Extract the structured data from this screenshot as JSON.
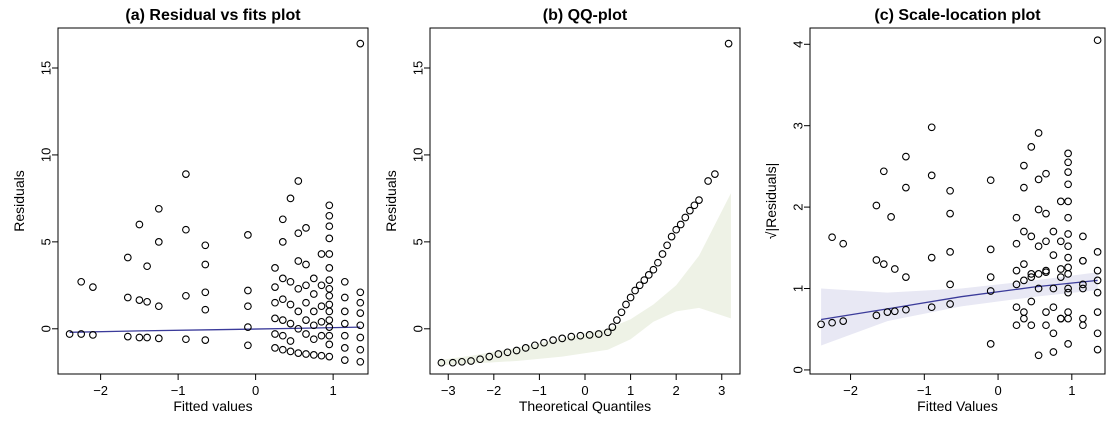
{
  "chart_data": [
    {
      "type": "scatter",
      "title": "(a) Residual vs fits plot",
      "xlabel": "Fitted values",
      "ylabel": "Residuals",
      "xlim": [
        -2.55,
        1.45
      ],
      "ylim": [
        -2.6,
        17.3
      ],
      "xticks": [
        -2,
        -1,
        0,
        1
      ],
      "yticks": [
        0,
        5,
        10,
        15
      ],
      "grid": false,
      "colors": {
        "points": "#000000",
        "smooth": "#3b3b9a"
      },
      "smooth": {
        "x": [
          -2.4,
          -1.5,
          -0.5,
          0.5,
          1.35
        ],
        "y": [
          -0.2,
          -0.12,
          -0.05,
          0.02,
          0.1
        ]
      },
      "points": [
        [
          -2.4,
          -0.3
        ],
        [
          -2.25,
          -0.3
        ],
        [
          -2.25,
          2.7
        ],
        [
          -2.1,
          -0.35
        ],
        [
          -2.1,
          2.4
        ],
        [
          -1.65,
          4.1
        ],
        [
          -1.65,
          1.8
        ],
        [
          -1.65,
          -0.45
        ],
        [
          -1.5,
          6.0
        ],
        [
          -1.5,
          1.65
        ],
        [
          -1.5,
          -0.5
        ],
        [
          -1.4,
          3.6
        ],
        [
          -1.4,
          1.55
        ],
        [
          -1.4,
          -0.5
        ],
        [
          -1.25,
          6.9
        ],
        [
          -1.25,
          5.0
        ],
        [
          -1.25,
          1.3
        ],
        [
          -1.25,
          -0.55
        ],
        [
          -0.9,
          8.9
        ],
        [
          -0.9,
          5.7
        ],
        [
          -0.9,
          1.9
        ],
        [
          -0.9,
          -0.6
        ],
        [
          -0.65,
          4.8
        ],
        [
          -0.65,
          3.7
        ],
        [
          -0.65,
          2.1
        ],
        [
          -0.65,
          1.1
        ],
        [
          -0.65,
          -0.65
        ],
        [
          -0.1,
          5.4
        ],
        [
          -0.1,
          2.2
        ],
        [
          -0.1,
          1.3
        ],
        [
          -0.1,
          0.1
        ],
        [
          -0.1,
          -0.95
        ],
        [
          0.25,
          3.5
        ],
        [
          0.25,
          2.4
        ],
        [
          0.25,
          1.5
        ],
        [
          0.25,
          0.6
        ],
        [
          0.25,
          -0.3
        ],
        [
          0.25,
          -1.1
        ],
        [
          0.35,
          6.3
        ],
        [
          0.35,
          5.0
        ],
        [
          0.35,
          2.9
        ],
        [
          0.35,
          1.7
        ],
        [
          0.35,
          0.5
        ],
        [
          0.35,
          -0.4
        ],
        [
          0.35,
          -1.2
        ],
        [
          0.45,
          7.5
        ],
        [
          0.45,
          2.7
        ],
        [
          0.45,
          1.4
        ],
        [
          0.45,
          0.3
        ],
        [
          0.45,
          -0.7
        ],
        [
          0.45,
          -1.3
        ],
        [
          0.55,
          8.5
        ],
        [
          0.55,
          5.5
        ],
        [
          0.55,
          3.9
        ],
        [
          0.55,
          2.3
        ],
        [
          0.55,
          1.0
        ],
        [
          0.55,
          0.0
        ],
        [
          0.55,
          -1.4
        ],
        [
          0.65,
          5.8
        ],
        [
          0.65,
          3.7
        ],
        [
          0.65,
          2.5
        ],
        [
          0.65,
          1.5
        ],
        [
          0.65,
          0.5
        ],
        [
          0.65,
          -0.3
        ],
        [
          0.65,
          -1.45
        ],
        [
          0.75,
          2.9
        ],
        [
          0.75,
          2.0
        ],
        [
          0.75,
          1.0
        ],
        [
          0.75,
          0.2
        ],
        [
          0.75,
          -0.6
        ],
        [
          0.75,
          -1.5
        ],
        [
          0.85,
          4.3
        ],
        [
          0.85,
          2.5
        ],
        [
          0.85,
          1.3
        ],
        [
          0.85,
          0.4
        ],
        [
          0.85,
          -0.4
        ],
        [
          0.85,
          -1.55
        ],
        [
          0.95,
          7.1
        ],
        [
          0.95,
          6.5
        ],
        [
          0.95,
          5.9
        ],
        [
          0.95,
          5.2
        ],
        [
          0.95,
          4.3
        ],
        [
          0.95,
          3.5
        ],
        [
          0.95,
          2.8
        ],
        [
          0.95,
          2.3
        ],
        [
          0.95,
          1.9
        ],
        [
          0.95,
          1.4
        ],
        [
          0.95,
          1.0
        ],
        [
          0.95,
          0.5
        ],
        [
          0.95,
          0.1
        ],
        [
          0.95,
          -0.4
        ],
        [
          0.95,
          -0.9
        ],
        [
          0.95,
          -1.6
        ],
        [
          1.15,
          2.7
        ],
        [
          1.15,
          1.8
        ],
        [
          1.15,
          1.0
        ],
        [
          1.15,
          0.3
        ],
        [
          1.15,
          -0.4
        ],
        [
          1.15,
          -1.1
        ],
        [
          1.15,
          -1.8
        ],
        [
          1.35,
          16.4
        ],
        [
          1.35,
          2.1
        ],
        [
          1.35,
          1.5
        ],
        [
          1.35,
          0.9
        ],
        [
          1.35,
          0.2
        ],
        [
          1.35,
          -0.5
        ],
        [
          1.35,
          -1.2
        ],
        [
          1.35,
          -1.9
        ]
      ]
    },
    {
      "type": "scatter",
      "title": "(b) QQ-plot",
      "xlabel": "Theoretical Quantiles",
      "ylabel": "Residuals",
      "xlim": [
        -3.4,
        3.4
      ],
      "ylim": [
        -2.6,
        17.3
      ],
      "xticks": [
        -3,
        -2,
        -1,
        0,
        1,
        2,
        3
      ],
      "yticks": [
        0,
        5,
        10,
        15
      ],
      "grid": false,
      "colors": {
        "points": "#000000",
        "band": "#eef2e6"
      },
      "band": {
        "x": [
          -3.2,
          -2.5,
          -1.5,
          -0.5,
          0.5,
          1.0,
          1.5,
          2.0,
          2.5,
          3.2
        ],
        "upper": [
          -1.8,
          -1.55,
          -1.1,
          -0.55,
          0.0,
          0.55,
          1.4,
          2.5,
          4.2,
          7.8
        ],
        "lower": [
          -2.1,
          -2.0,
          -1.85,
          -1.6,
          -1.2,
          -0.6,
          0.4,
          1.0,
          1.2,
          0.6
        ]
      },
      "points_sorted_x": [
        -3.2,
        3.2
      ],
      "observed": [
        [
          -3.15,
          -1.95
        ],
        [
          -2.9,
          -1.95
        ],
        [
          -2.7,
          -1.9
        ],
        [
          -2.5,
          -1.85
        ],
        [
          -2.3,
          -1.75
        ],
        [
          -2.1,
          -1.6
        ],
        [
          -1.9,
          -1.45
        ],
        [
          -1.7,
          -1.35
        ],
        [
          -1.5,
          -1.25
        ],
        [
          -1.3,
          -1.1
        ],
        [
          -1.1,
          -0.95
        ],
        [
          -0.9,
          -0.8
        ],
        [
          -0.7,
          -0.65
        ],
        [
          -0.5,
          -0.55
        ],
        [
          -0.3,
          -0.45
        ],
        [
          -0.1,
          -0.4
        ],
        [
          0.1,
          -0.35
        ],
        [
          0.3,
          -0.3
        ],
        [
          0.5,
          -0.2
        ],
        [
          0.6,
          0.1
        ],
        [
          0.7,
          0.5
        ],
        [
          0.8,
          0.95
        ],
        [
          0.9,
          1.4
        ],
        [
          1.0,
          1.8
        ],
        [
          1.1,
          2.2
        ],
        [
          1.2,
          2.5
        ],
        [
          1.3,
          2.8
        ],
        [
          1.4,
          3.1
        ],
        [
          1.5,
          3.4
        ],
        [
          1.6,
          3.8
        ],
        [
          1.7,
          4.3
        ],
        [
          1.8,
          4.8
        ],
        [
          1.9,
          5.3
        ],
        [
          2.0,
          5.7
        ],
        [
          2.1,
          6.0
        ],
        [
          2.2,
          6.4
        ],
        [
          2.3,
          6.8
        ],
        [
          2.4,
          7.1
        ],
        [
          2.5,
          7.4
        ],
        [
          2.7,
          8.5
        ],
        [
          2.85,
          8.9
        ],
        [
          3.15,
          16.4
        ]
      ]
    },
    {
      "type": "scatter",
      "title": "(c) Scale-location plot",
      "xlabel": "Fitted Values",
      "ylabel": "√|Residuals|",
      "xlim": [
        -2.55,
        1.45
      ],
      "ylim": [
        -0.05,
        4.2
      ],
      "xticks": [
        -2,
        -1,
        0,
        1
      ],
      "yticks": [
        0,
        1,
        2,
        3,
        4
      ],
      "grid": false,
      "colors": {
        "points": "#000000",
        "smooth": "#3b3b9a",
        "band": "#e8e8f4"
      },
      "smooth": {
        "x": [
          -2.4,
          -1.5,
          -0.5,
          0.5,
          1.35
        ],
        "y": [
          0.62,
          0.75,
          0.9,
          1.02,
          1.1
        ]
      },
      "band": {
        "x": [
          -2.4,
          -1.5,
          -0.5,
          0.5,
          1.35
        ],
        "upper": [
          1.0,
          0.95,
          1.0,
          1.1,
          1.2
        ],
        "lower": [
          0.3,
          0.6,
          0.78,
          0.9,
          0.98
        ]
      },
      "points": [
        [
          -2.4,
          0.56
        ],
        [
          -2.25,
          0.58
        ],
        [
          -2.25,
          1.63
        ],
        [
          -2.1,
          0.6
        ],
        [
          -2.1,
          1.55
        ],
        [
          -1.65,
          2.02
        ],
        [
          -1.65,
          1.35
        ],
        [
          -1.65,
          0.67
        ],
        [
          -1.55,
          2.44
        ],
        [
          -1.55,
          1.3
        ],
        [
          -1.5,
          0.71
        ],
        [
          -1.45,
          1.88
        ],
        [
          -1.4,
          1.24
        ],
        [
          -1.4,
          0.72
        ],
        [
          -1.25,
          2.62
        ],
        [
          -1.25,
          2.24
        ],
        [
          -1.25,
          1.14
        ],
        [
          -1.25,
          0.74
        ],
        [
          -0.9,
          2.98
        ],
        [
          -0.9,
          2.39
        ],
        [
          -0.9,
          1.38
        ],
        [
          -0.9,
          0.77
        ],
        [
          -0.65,
          2.2
        ],
        [
          -0.65,
          1.92
        ],
        [
          -0.65,
          1.45
        ],
        [
          -0.65,
          1.05
        ],
        [
          -0.65,
          0.81
        ],
        [
          -0.1,
          2.33
        ],
        [
          -0.1,
          1.48
        ],
        [
          -0.1,
          1.14
        ],
        [
          -0.1,
          0.32
        ],
        [
          -0.1,
          0.97
        ],
        [
          0.25,
          1.87
        ],
        [
          0.25,
          1.55
        ],
        [
          0.25,
          1.22
        ],
        [
          0.25,
          0.77
        ],
        [
          0.25,
          0.55
        ],
        [
          0.25,
          1.05
        ],
        [
          0.35,
          2.51
        ],
        [
          0.35,
          2.24
        ],
        [
          0.35,
          1.7
        ],
        [
          0.35,
          1.3
        ],
        [
          0.35,
          0.71
        ],
        [
          0.35,
          0.63
        ],
        [
          0.35,
          1.1
        ],
        [
          0.45,
          2.74
        ],
        [
          0.45,
          1.64
        ],
        [
          0.45,
          1.18
        ],
        [
          0.45,
          0.55
        ],
        [
          0.45,
          0.84
        ],
        [
          0.45,
          1.14
        ],
        [
          0.55,
          2.91
        ],
        [
          0.55,
          2.34
        ],
        [
          0.55,
          1.97
        ],
        [
          0.55,
          1.52
        ],
        [
          0.55,
          1.0
        ],
        [
          0.55,
          0.18
        ],
        [
          0.55,
          1.18
        ],
        [
          0.65,
          2.41
        ],
        [
          0.65,
          1.92
        ],
        [
          0.65,
          1.58
        ],
        [
          0.65,
          1.22
        ],
        [
          0.65,
          0.71
        ],
        [
          0.65,
          0.55
        ],
        [
          0.65,
          1.2
        ],
        [
          0.75,
          1.7
        ],
        [
          0.75,
          1.41
        ],
        [
          0.75,
          1.0
        ],
        [
          0.75,
          0.45
        ],
        [
          0.75,
          0.77
        ],
        [
          0.75,
          0.22
        ],
        [
          0.85,
          2.07
        ],
        [
          0.85,
          1.58
        ],
        [
          0.85,
          1.14
        ],
        [
          0.85,
          0.63
        ],
        [
          0.85,
          0.63
        ],
        [
          0.85,
          1.24
        ],
        [
          0.95,
          2.66
        ],
        [
          0.95,
          2.55
        ],
        [
          0.95,
          2.43
        ],
        [
          0.95,
          2.28
        ],
        [
          0.95,
          2.07
        ],
        [
          0.95,
          1.87
        ],
        [
          0.95,
          1.67
        ],
        [
          0.95,
          1.52
        ],
        [
          0.95,
          1.38
        ],
        [
          0.95,
          1.18
        ],
        [
          0.95,
          1.0
        ],
        [
          0.95,
          0.71
        ],
        [
          0.95,
          0.32
        ],
        [
          0.95,
          0.63
        ],
        [
          0.95,
          0.95
        ],
        [
          0.95,
          1.26
        ],
        [
          1.15,
          1.64
        ],
        [
          1.15,
          1.34
        ],
        [
          1.15,
          1.0
        ],
        [
          1.15,
          0.55
        ],
        [
          1.15,
          0.63
        ],
        [
          1.15,
          1.05
        ],
        [
          1.15,
          1.34
        ],
        [
          1.35,
          4.05
        ],
        [
          1.35,
          1.45
        ],
        [
          1.35,
          1.22
        ],
        [
          1.35,
          0.95
        ],
        [
          1.35,
          0.45
        ],
        [
          1.35,
          0.71
        ],
        [
          1.35,
          1.1
        ],
        [
          1.35,
          0.25
        ]
      ]
    }
  ]
}
